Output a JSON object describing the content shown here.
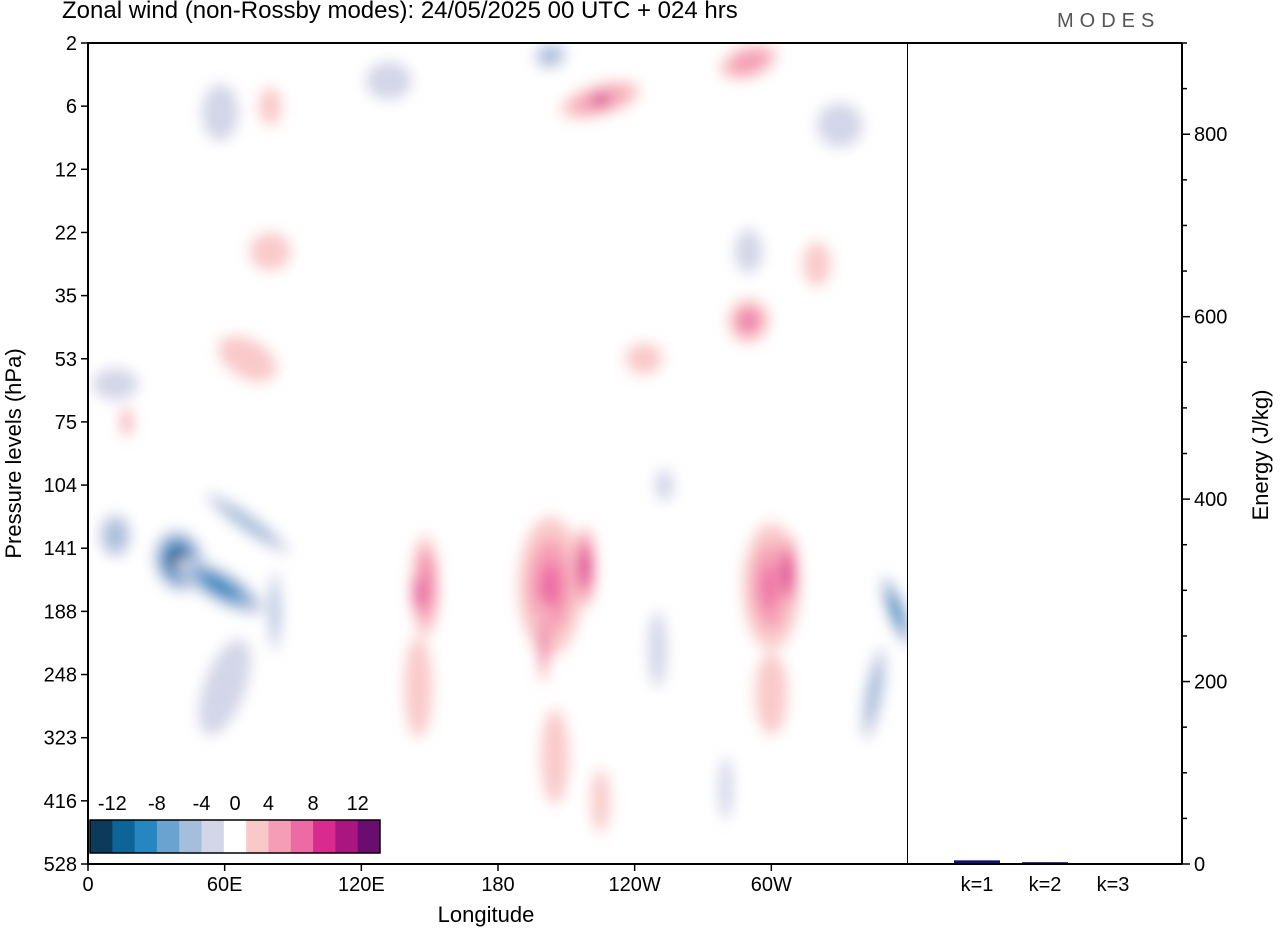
{
  "title": "Zonal wind (non-Rossby modes):  24/05/2025  00 UTC  + 024 hrs",
  "logo": "MODES",
  "chart_data": [
    {
      "type": "heatmap",
      "title": "Zonal wind (non-Rossby modes):  24/05/2025  00 UTC  + 024 hrs",
      "xlabel": "Longitude",
      "ylabel": "Pressure levels (hPa)",
      "x_ticks": [
        "0",
        "60E",
        "120E",
        "180",
        "120W",
        "60W"
      ],
      "x_tick_degrees": [
        0,
        60,
        120,
        180,
        240,
        300
      ],
      "xlim": [
        0,
        360
      ],
      "y_ticks": [
        "2",
        "6",
        "12",
        "22",
        "35",
        "53",
        "75",
        "104",
        "141",
        "188",
        "248",
        "323",
        "416",
        "528"
      ],
      "grid": false,
      "colorbar": {
        "position": "bottom-left",
        "labels": [
          "-12",
          "-8",
          "-4",
          "0",
          "4",
          "8",
          "12"
        ],
        "levels": [
          -14,
          -12,
          -10,
          -8,
          -6,
          -4,
          -2,
          2,
          4,
          6,
          8,
          10,
          12,
          14
        ],
        "colors": [
          "#0b3a5b",
          "#0d6497",
          "#2686c0",
          "#6aa3cf",
          "#a5bedb",
          "#d3d5e8",
          "#ffffff",
          "#f9c9c9",
          "#f59db6",
          "#ee6aa4",
          "#d92b8f",
          "#aa1680",
          "#6a0d6e"
        ]
      },
      "anomalies": [
        {
          "lon": 40,
          "level_index": 8.2,
          "lon_width": 22,
          "level_width": 1.0,
          "value": -13.5,
          "angle": -15
        },
        {
          "lon": 58,
          "level_index": 8.6,
          "lon_width": 14,
          "level_width": 1.6,
          "value": -9,
          "angle": -60
        },
        {
          "lon": 70,
          "level_index": 7.6,
          "lon_width": 8,
          "level_width": 1.6,
          "value": -6,
          "angle": -55
        },
        {
          "lon": 12,
          "level_index": 7.8,
          "lon_width": 14,
          "level_width": 0.7,
          "value": -6,
          "angle": 0
        },
        {
          "lon": 60,
          "level_index": 10.2,
          "lon_width": 18,
          "level_width": 1.6,
          "value": -3,
          "angle": 20
        },
        {
          "lon": 82,
          "level_index": 9.0,
          "lon_width": 5,
          "level_width": 1.3,
          "value": -5,
          "angle": 0
        },
        {
          "lon": 355,
          "level_index": 9.0,
          "lon_width": 8,
          "level_width": 1.2,
          "value": -9,
          "angle": -20
        },
        {
          "lon": 345,
          "level_index": 10.3,
          "lon_width": 8,
          "level_width": 1.5,
          "value": -5,
          "angle": 10
        },
        {
          "lon": 253,
          "level_index": 7.0,
          "lon_width": 8,
          "level_width": 0.5,
          "value": -3,
          "angle": 0
        },
        {
          "lon": 250,
          "level_index": 9.6,
          "lon_width": 8,
          "level_width": 1.2,
          "value": -3,
          "angle": 0
        },
        {
          "lon": 280,
          "level_index": 11.8,
          "lon_width": 6,
          "level_width": 1.0,
          "value": -3,
          "angle": 0
        },
        {
          "lon": 148,
          "level_index": 8.6,
          "lon_width": 12,
          "level_width": 1.6,
          "value": 7,
          "angle": 0
        },
        {
          "lon": 145,
          "level_index": 8.7,
          "lon_width": 6,
          "level_width": 0.9,
          "value": 9,
          "angle": 0
        },
        {
          "lon": 145,
          "level_index": 10.2,
          "lon_width": 12,
          "level_width": 1.6,
          "value": 3,
          "angle": 0
        },
        {
          "lon": 203,
          "level_index": 8.6,
          "lon_width": 28,
          "level_width": 2.2,
          "value": 6,
          "angle": 0
        },
        {
          "lon": 218,
          "level_index": 8.3,
          "lon_width": 10,
          "level_width": 1.3,
          "value": 9,
          "angle": 0
        },
        {
          "lon": 200,
          "level_index": 9.5,
          "lon_width": 5,
          "level_width": 1.3,
          "value": 8,
          "angle": 0
        },
        {
          "lon": 205,
          "level_index": 11.3,
          "lon_width": 12,
          "level_width": 1.5,
          "value": 3,
          "angle": 0
        },
        {
          "lon": 225,
          "level_index": 12.0,
          "lon_width": 8,
          "level_width": 1.0,
          "value": 3,
          "angle": 0
        },
        {
          "lon": 300,
          "level_index": 8.6,
          "lon_width": 25,
          "level_width": 2.0,
          "value": 6,
          "angle": 0
        },
        {
          "lon": 307,
          "level_index": 8.4,
          "lon_width": 10,
          "level_width": 1.3,
          "value": 9,
          "angle": 0
        },
        {
          "lon": 300,
          "level_index": 10.3,
          "lon_width": 14,
          "level_width": 1.3,
          "value": 3,
          "angle": 0
        },
        {
          "lon": 225,
          "level_index": 0.9,
          "lon_width": 36,
          "level_width": 0.5,
          "value": 6,
          "angle": -16
        },
        {
          "lon": 225,
          "level_index": 0.9,
          "lon_width": 14,
          "level_width": 0.3,
          "value": 11,
          "angle": -16
        },
        {
          "lon": 290,
          "level_index": 0.3,
          "lon_width": 26,
          "level_width": 0.5,
          "value": 5,
          "angle": -18
        },
        {
          "lon": 203,
          "level_index": 0.2,
          "lon_width": 14,
          "level_width": 0.4,
          "value": -5,
          "angle": -15
        },
        {
          "lon": 290,
          "level_index": 4.4,
          "lon_width": 18,
          "level_width": 0.7,
          "value": 6,
          "angle": 10
        },
        {
          "lon": 244,
          "level_index": 5.0,
          "lon_width": 16,
          "level_width": 0.5,
          "value": 3,
          "angle": 0
        },
        {
          "lon": 80,
          "level_index": 3.3,
          "lon_width": 18,
          "level_width": 0.6,
          "value": 3,
          "angle": 0
        },
        {
          "lon": 58,
          "level_index": 1.1,
          "lon_width": 16,
          "level_width": 0.9,
          "value": -3,
          "angle": 0
        },
        {
          "lon": 132,
          "level_index": 0.6,
          "lon_width": 20,
          "level_width": 0.6,
          "value": -3,
          "angle": 0
        },
        {
          "lon": 330,
          "level_index": 1.3,
          "lon_width": 20,
          "level_width": 0.7,
          "value": -3,
          "angle": 0
        },
        {
          "lon": 12,
          "level_index": 5.4,
          "lon_width": 20,
          "level_width": 0.5,
          "value": -3,
          "angle": 0
        },
        {
          "lon": 70,
          "level_index": 5.0,
          "lon_width": 28,
          "level_width": 0.6,
          "value": 3,
          "angle": 30
        },
        {
          "lon": 80,
          "level_index": 1.0,
          "lon_width": 10,
          "level_width": 0.6,
          "value": 3,
          "angle": 0
        },
        {
          "lon": 290,
          "level_index": 3.3,
          "lon_width": 12,
          "level_width": 0.7,
          "value": -3,
          "angle": 0
        },
        {
          "lon": 320,
          "level_index": 3.5,
          "lon_width": 12,
          "level_width": 0.7,
          "value": 3,
          "angle": 0
        },
        {
          "lon": 17,
          "level_index": 6.0,
          "lon_width": 5,
          "level_width": 0.5,
          "value": 5,
          "angle": 0
        }
      ]
    },
    {
      "type": "bar",
      "categories": [
        "k=1",
        "k=2",
        "k=3"
      ],
      "values": [
        4,
        2,
        1
      ],
      "ylabel": "Energy (J/kg)",
      "ylim": [
        0,
        900
      ],
      "y_ticks": [
        0,
        200,
        400,
        600,
        800
      ],
      "grid": false
    }
  ]
}
